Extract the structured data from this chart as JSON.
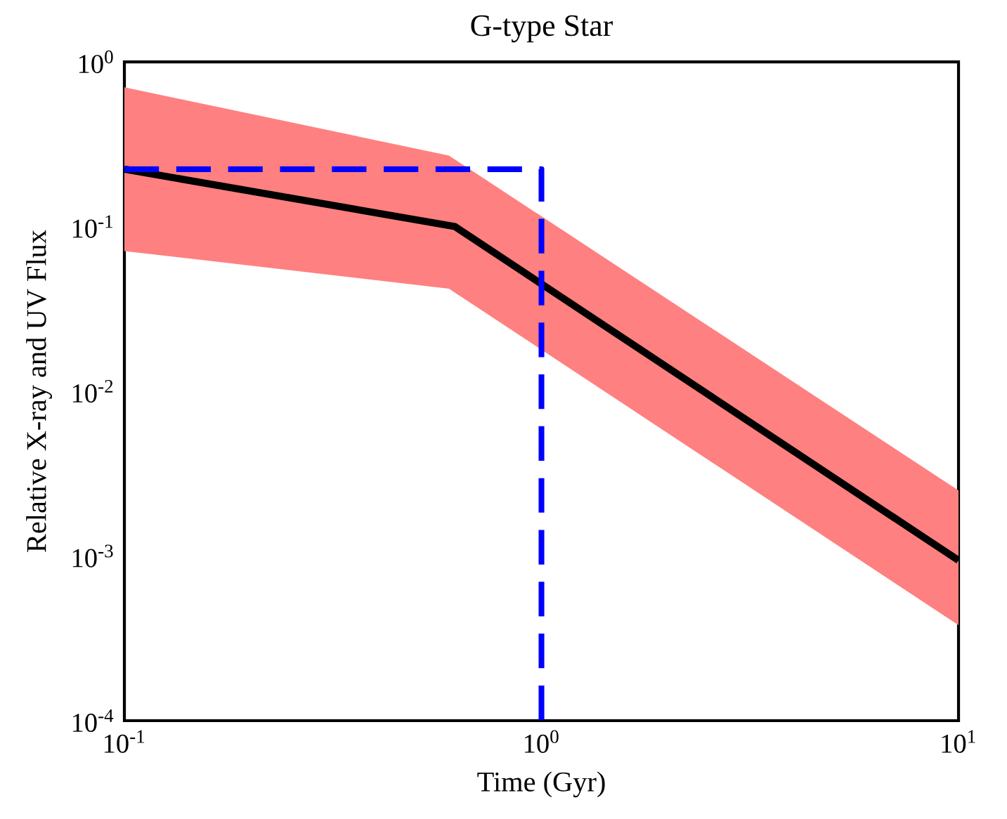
{
  "chart_data": {
    "type": "line",
    "title": "G-type Star",
    "xlabel": "Time (Gyr)",
    "ylabel": "Relative X-ray and UV Flux",
    "log": "xy",
    "xlim": [
      0.1,
      10
    ],
    "ylim": [
      0.0001,
      1
    ],
    "xticks": [
      {
        "value": 0.1,
        "label": "10$^{-1}$"
      },
      {
        "value": 1,
        "label": "10$^{0}$"
      },
      {
        "value": 10,
        "label": "10$^{1}$"
      }
    ],
    "yticks": [
      {
        "value": 0.0001,
        "label": "10$^{-4}$"
      },
      {
        "value": 0.001,
        "label": "10$^{-3}$"
      },
      {
        "value": 0.01,
        "label": "10$^{-2}$"
      },
      {
        "value": 0.1,
        "label": "10$^{-1}$"
      },
      {
        "value": 1,
        "label": "10$^{0}$"
      }
    ],
    "series": [
      {
        "color": "#ff8080",
        "x": [
          0.1,
          0.6,
          10
        ],
        "values": [
          null,
          null,
          null
        ],
        "lower": [
          0.071,
          0.042,
          0.00038
        ],
        "upper": [
          0.7,
          0.27,
          0.0025
        ]
      },
      {
        "color": "#000000",
        "x": [
          0.1,
          0.62,
          10
        ],
        "values": [
          0.223,
          0.1,
          0.00094
        ]
      },
      {
        "color": "#0000ff",
        "line_style": "dashed",
        "x": [
          0.1,
          1,
          1
        ],
        "values": [
          0.223,
          0.223,
          0.0001
        ]
      }
    ]
  }
}
